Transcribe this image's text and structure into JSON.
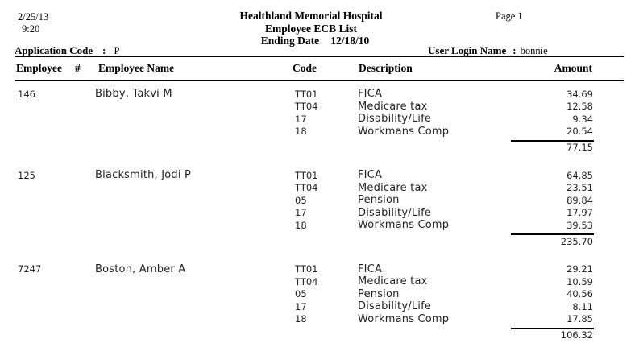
{
  "page": {
    "date": "2/25/13",
    "time": "9:20",
    "page_label": "Page 1",
    "title": "Healthland Memorial Hospital",
    "subtitle": "Employee ECB List",
    "ending_date_label": "Ending Date",
    "ending_date_value": "12/18/10",
    "application_code_label": "Application Code",
    "application_code_separator": ":",
    "application_code_value": "P",
    "user_login_label": "User Login Name",
    "user_login_separator": ":",
    "user_login_value": "bonnie"
  },
  "table": {
    "headers": {
      "employee_number": "Employee",
      "employee_number_symbol": "#",
      "employee_name": "Employee Name",
      "code": "Code",
      "description": "Description",
      "amount": "Amount"
    },
    "employees": [
      {
        "employee_number": "146",
        "employee_name": "Bibby, Takvi M",
        "lines": [
          {
            "code": "TT01",
            "description": "FICA",
            "amount": "34.69"
          },
          {
            "code": "TT04",
            "description": "Medicare tax",
            "amount": "12.58"
          },
          {
            "code": "17",
            "description": "Disability/Life",
            "amount": "9.34"
          },
          {
            "code": "18",
            "description": "Workmans Comp",
            "amount": "20.54"
          }
        ],
        "total": "77.15"
      },
      {
        "employee_number": "125",
        "employee_name": "Blacksmith, Jodi P",
        "lines": [
          {
            "code": "TT01",
            "description": "FICA",
            "amount": "64.85"
          },
          {
            "code": "TT04",
            "description": "Medicare tax",
            "amount": "23.51"
          },
          {
            "code": "05",
            "description": "Pension",
            "amount": "89.84"
          },
          {
            "code": "17",
            "description": "Disability/Life",
            "amount": "17.97"
          },
          {
            "code": "18",
            "description": "Workmans Comp",
            "amount": "39.53"
          }
        ],
        "total": "235.70"
      },
      {
        "employee_number": "7247",
        "employee_name": "Boston, Amber A",
        "lines": [
          {
            "code": "TT01",
            "description": "FICA",
            "amount": "29.21"
          },
          {
            "code": "TT04",
            "description": "Medicare tax",
            "amount": "10.59"
          },
          {
            "code": "05",
            "description": "Pension",
            "amount": "40.56"
          },
          {
            "code": "17",
            "description": "Disability/Life",
            "amount": "8.11"
          },
          {
            "code": "18",
            "description": "Workmans Comp",
            "amount": "17.85"
          }
        ],
        "total": "106.32"
      }
    ]
  }
}
